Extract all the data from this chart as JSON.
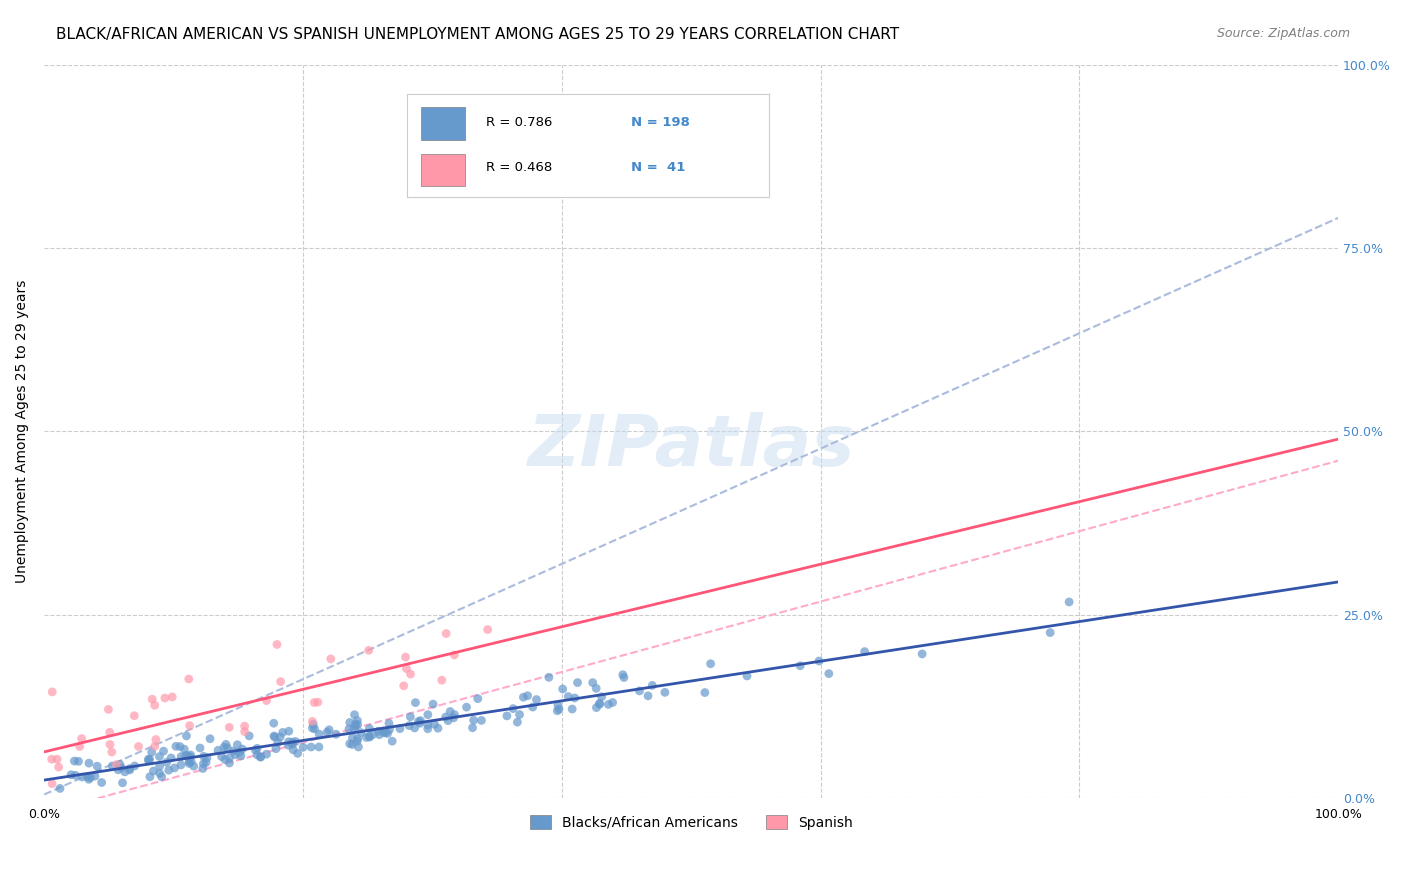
{
  "title": "BLACK/AFRICAN AMERICAN VS SPANISH UNEMPLOYMENT AMONG AGES 25 TO 29 YEARS CORRELATION CHART",
  "source": "Source: ZipAtlas.com",
  "xlabel": "",
  "ylabel": "Unemployment Among Ages 25 to 29 years",
  "xlim": [
    0.0,
    1.0
  ],
  "ylim": [
    0.0,
    1.0
  ],
  "xtick_labels": [
    "0.0%",
    "100.0%"
  ],
  "ytick_labels": [
    "0.0%",
    "25.0%",
    "50.0%",
    "75.0%",
    "100.0%"
  ],
  "ytick_positions": [
    0.0,
    0.25,
    0.5,
    0.75,
    1.0
  ],
  "xtick_positions": [
    0.0,
    1.0
  ],
  "blue_color": "#6699CC",
  "pink_color": "#FF99AA",
  "blue_line_color": "#3355AA",
  "pink_line_color": "#FF5577",
  "blue_dashed_color": "#AABBDD",
  "pink_dashed_color": "#FFAACC",
  "grid_color": "#CCCCCC",
  "background_color": "#FFFFFF",
  "watermark_text": "ZIPatlas",
  "watermark_color": "#DDEEFF",
  "legend_R_blue": "0.786",
  "legend_N_blue": "198",
  "legend_R_pink": "0.468",
  "legend_N_pink": "41",
  "title_fontsize": 11,
  "axis_label_fontsize": 10,
  "tick_fontsize": 9,
  "tick_color_right": "#4488CC",
  "bottom_legend_blue": "Blacks/African Americans",
  "bottom_legend_pink": "Spanish",
  "blue_scatter_seed": 42,
  "pink_scatter_seed": 7,
  "blue_n": 198,
  "pink_n": 41,
  "blue_R": 0.786,
  "pink_R": 0.468,
  "blue_trend_intercept": 0.005,
  "blue_trend_slope": 0.19,
  "pink_trend_intercept": 0.03,
  "pink_trend_slope": 0.4
}
